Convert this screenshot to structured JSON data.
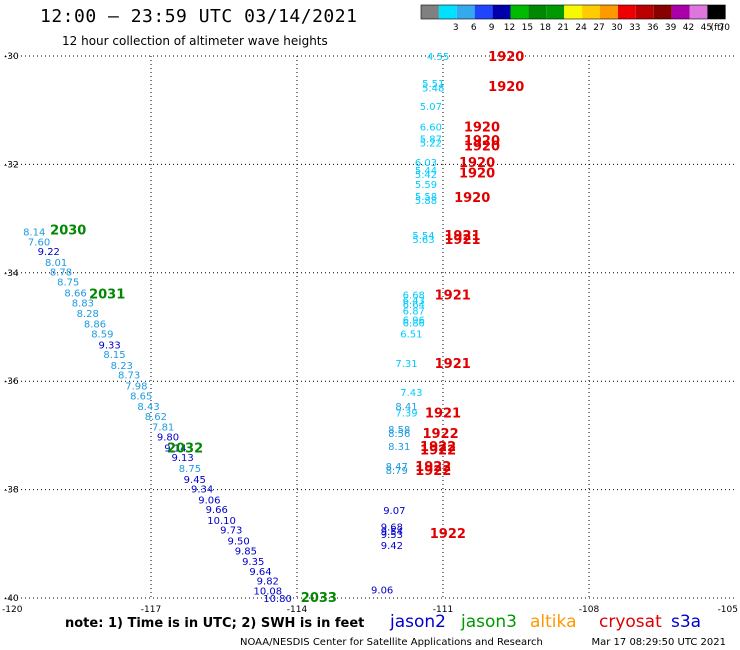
{
  "header": {
    "title": "12:00 — 23:59 UTC 03/14/2021",
    "subtitle": "12 hour collection of altimeter wave heights"
  },
  "legend": {
    "swatches": [
      {
        "color": "#808080",
        "label": ""
      },
      {
        "color": "#00e0ff",
        "label": "3"
      },
      {
        "color": "#33aaee",
        "label": "6"
      },
      {
        "color": "#1f45ff",
        "label": "9"
      },
      {
        "color": "#0000aa",
        "label": "12"
      },
      {
        "color": "#00bb00",
        "label": "15"
      },
      {
        "color": "#008800",
        "label": "18"
      },
      {
        "color": "#009900",
        "label": "21"
      },
      {
        "color": "#f8f800",
        "label": "24"
      },
      {
        "color": "#ffcc00",
        "label": "27"
      },
      {
        "color": "#ff9900",
        "label": "30"
      },
      {
        "color": "#ee0000",
        "label": "33"
      },
      {
        "color": "#bb0000",
        "label": "36"
      },
      {
        "color": "#880000",
        "label": "39"
      },
      {
        "color": "#aa00aa",
        "label": "42"
      },
      {
        "color": "#dd77dd",
        "label": "45"
      },
      {
        "color": "#000000",
        "label": "70"
      }
    ],
    "unit": "(ft)"
  },
  "chart_data": {
    "type": "scatter",
    "xlim": [
      -120,
      -105
    ],
    "ylim": [
      -40,
      -30
    ],
    "x_ticks": [
      "-120",
      "-117",
      "-114",
      "-111",
      "-108",
      "-105"
    ],
    "y_ticks": [
      "-30",
      "-32",
      "-34",
      "-36",
      "-38",
      "-40"
    ],
    "grid": "dotted",
    "colors": {
      "cyan": "#00ccff",
      "sky": "#1e9be0",
      "blue": "#0000cc",
      "hour_green": "#008800",
      "hour_red": "#e00000"
    },
    "series": [
      {
        "name": "jason2",
        "color": "#0000cc",
        "points": []
      },
      {
        "name": "jason3",
        "color": "#009900",
        "points": [
          {
            "x": -119.4,
            "y": -33.24,
            "v": "8.14",
            "c": "sky"
          },
          {
            "x": -119.3,
            "y": -33.42,
            "v": "7.60",
            "c": "sky"
          },
          {
            "x": -119.1,
            "y": -33.6,
            "v": "9.22",
            "c": "blue"
          },
          {
            "x": -118.95,
            "y": -33.8,
            "v": "8.01",
            "c": "sky"
          },
          {
            "x": -118.85,
            "y": -33.98,
            "v": "8.78",
            "c": "sky"
          },
          {
            "x": -118.7,
            "y": -34.16,
            "v": "8.75",
            "c": "sky"
          },
          {
            "x": -118.55,
            "y": -34.36,
            "v": "8.66",
            "c": "sky"
          },
          {
            "x": -118.4,
            "y": -34.55,
            "v": "8.83",
            "c": "sky"
          },
          {
            "x": -118.3,
            "y": -34.74,
            "v": "8.28",
            "c": "sky"
          },
          {
            "x": -118.15,
            "y": -34.94,
            "v": "8.86",
            "c": "sky"
          },
          {
            "x": -118.0,
            "y": -35.12,
            "v": "8.59",
            "c": "sky"
          },
          {
            "x": -117.85,
            "y": -35.32,
            "v": "9.33",
            "c": "blue"
          },
          {
            "x": -117.75,
            "y": -35.5,
            "v": "8.15",
            "c": "sky"
          },
          {
            "x": -117.6,
            "y": -35.7,
            "v": "8.23",
            "c": "sky"
          },
          {
            "x": -117.45,
            "y": -35.88,
            "v": "8.73",
            "c": "sky"
          },
          {
            "x": -117.3,
            "y": -36.08,
            "v": "7.98",
            "c": "sky"
          },
          {
            "x": -117.2,
            "y": -36.26,
            "v": "8.65",
            "c": "sky"
          },
          {
            "x": -117.05,
            "y": -36.46,
            "v": "8.43",
            "c": "sky"
          },
          {
            "x": -116.9,
            "y": -36.64,
            "v": "8.62",
            "c": "sky"
          },
          {
            "x": -116.75,
            "y": -36.84,
            "v": "7.81",
            "c": "sky"
          },
          {
            "x": -116.65,
            "y": -37.02,
            "v": "9.80",
            "c": "blue"
          },
          {
            "x": -116.5,
            "y": -37.22,
            "v": "9.14",
            "c": "blue"
          },
          {
            "x": -116.35,
            "y": -37.4,
            "v": "9.13",
            "c": "blue"
          },
          {
            "x": -116.2,
            "y": -37.6,
            "v": "8.75",
            "c": "sky"
          },
          {
            "x": -116.1,
            "y": -37.8,
            "v": "9.45",
            "c": "blue"
          },
          {
            "x": -115.95,
            "y": -37.98,
            "v": "9.34",
            "c": "blue"
          },
          {
            "x": -115.8,
            "y": -38.18,
            "v": "9.06",
            "c": "blue"
          },
          {
            "x": -115.65,
            "y": -38.36,
            "v": "9.66",
            "c": "blue"
          },
          {
            "x": -115.55,
            "y": -38.56,
            "v": "10.10",
            "c": "blue"
          },
          {
            "x": -115.35,
            "y": -38.74,
            "v": "9.73",
            "c": "blue"
          },
          {
            "x": -115.2,
            "y": -38.94,
            "v": "9.50",
            "c": "blue"
          },
          {
            "x": -115.05,
            "y": -39.12,
            "v": "9.85",
            "c": "blue"
          },
          {
            "x": -114.9,
            "y": -39.32,
            "v": "9.35",
            "c": "blue"
          },
          {
            "x": -114.75,
            "y": -39.5,
            "v": "9.64",
            "c": "blue"
          },
          {
            "x": -114.6,
            "y": -39.68,
            "v": "9.82",
            "c": "blue"
          },
          {
            "x": -114.6,
            "y": -39.86,
            "v": "10.08",
            "c": "blue"
          },
          {
            "x": -114.4,
            "y": -40.0,
            "v": "10.80",
            "c": "blue"
          }
        ],
        "hours": [
          {
            "x": -118.7,
            "y": -33.2,
            "v": "2030"
          },
          {
            "x": -117.9,
            "y": -34.38,
            "v": "2031"
          },
          {
            "x": -116.3,
            "y": -37.22,
            "v": "2032"
          },
          {
            "x": -113.55,
            "y": -39.98,
            "v": "2033"
          }
        ]
      },
      {
        "name": "altika",
        "color": "#ff9900",
        "points": []
      },
      {
        "name": "cryosat",
        "color": "#dd0000",
        "points": [
          {
            "x": -111.1,
            "y": -30.0,
            "v": "4.55",
            "c": "cyan"
          },
          {
            "x": -111.2,
            "y": -30.5,
            "v": "5.51",
            "c": "cyan"
          },
          {
            "x": -111.2,
            "y": -30.58,
            "v": "5.48",
            "c": "cyan"
          },
          {
            "x": -111.25,
            "y": -30.92,
            "v": "5.07",
            "c": "cyan"
          },
          {
            "x": -111.25,
            "y": -31.3,
            "v": "6.60",
            "c": "cyan"
          },
          {
            "x": -111.25,
            "y": -31.52,
            "v": "5.87",
            "c": "cyan"
          },
          {
            "x": -111.25,
            "y": -31.6,
            "v": "5.22",
            "c": "cyan"
          },
          {
            "x": -111.35,
            "y": -31.96,
            "v": "6.03",
            "c": "cyan"
          },
          {
            "x": -111.35,
            "y": -32.1,
            "v": "5.44",
            "c": "cyan"
          },
          {
            "x": -111.35,
            "y": -32.18,
            "v": "5.42",
            "c": "cyan"
          },
          {
            "x": -111.35,
            "y": -32.36,
            "v": "5.59",
            "c": "cyan"
          },
          {
            "x": -111.35,
            "y": -32.58,
            "v": "5.58",
            "c": "cyan"
          },
          {
            "x": -111.35,
            "y": -32.66,
            "v": "5.88",
            "c": "cyan"
          },
          {
            "x": -111.4,
            "y": -33.3,
            "v": "5.54",
            "c": "cyan"
          },
          {
            "x": -111.4,
            "y": -33.38,
            "v": "5.63",
            "c": "cyan"
          },
          {
            "x": -111.6,
            "y": -34.4,
            "v": "6.68",
            "c": "cyan"
          },
          {
            "x": -111.6,
            "y": -34.5,
            "v": "6.43",
            "c": "cyan"
          },
          {
            "x": -111.6,
            "y": -34.58,
            "v": "6.64",
            "c": "cyan"
          },
          {
            "x": -111.6,
            "y": -34.7,
            "v": "6.87",
            "c": "cyan"
          },
          {
            "x": -111.6,
            "y": -34.86,
            "v": "6.96",
            "c": "cyan"
          },
          {
            "x": -111.6,
            "y": -34.92,
            "v": "6.86",
            "c": "cyan"
          },
          {
            "x": -111.65,
            "y": -35.12,
            "v": "6.51",
            "c": "cyan"
          },
          {
            "x": -111.75,
            "y": -35.66,
            "v": "7.31",
            "c": "cyan"
          },
          {
            "x": -111.65,
            "y": -36.2,
            "v": "7.43",
            "c": "cyan"
          },
          {
            "x": -111.75,
            "y": -36.46,
            "v": "8.41",
            "c": "sky"
          },
          {
            "x": -111.75,
            "y": -36.58,
            "v": "7.39",
            "c": "cyan"
          },
          {
            "x": -111.9,
            "y": -36.88,
            "v": "8.58",
            "c": "sky"
          },
          {
            "x": -111.9,
            "y": -36.96,
            "v": "8.56",
            "c": "sky"
          },
          {
            "x": -111.9,
            "y": -37.2,
            "v": "8.31",
            "c": "sky"
          },
          {
            "x": -111.95,
            "y": -37.56,
            "v": "8.47",
            "c": "sky"
          },
          {
            "x": -111.95,
            "y": -37.64,
            "v": "8.79",
            "c": "sky"
          }
        ],
        "hours": [
          {
            "x": -109.7,
            "y": -30.0,
            "v": "1920"
          },
          {
            "x": -109.7,
            "y": -30.55,
            "v": "1920"
          },
          {
            "x": -110.2,
            "y": -31.3,
            "v": "1920"
          },
          {
            "x": -110.2,
            "y": -31.55,
            "v": "1920"
          },
          {
            "x": -110.2,
            "y": -31.65,
            "v": "1920"
          },
          {
            "x": -110.3,
            "y": -31.96,
            "v": "1920"
          },
          {
            "x": -110.3,
            "y": -32.15,
            "v": "1920"
          },
          {
            "x": -110.4,
            "y": -32.6,
            "v": "1920"
          },
          {
            "x": -110.6,
            "y": -33.3,
            "v": "1921"
          },
          {
            "x": -110.6,
            "y": -33.38,
            "v": "1921"
          },
          {
            "x": -110.8,
            "y": -34.4,
            "v": "1921"
          },
          {
            "x": -110.8,
            "y": -35.66,
            "v": "1921"
          },
          {
            "x": -111.0,
            "y": -36.58,
            "v": "1921"
          },
          {
            "x": -111.05,
            "y": -36.96,
            "v": "1922"
          },
          {
            "x": -111.1,
            "y": -37.2,
            "v": "1922"
          },
          {
            "x": -111.1,
            "y": -37.26,
            "v": "1922"
          },
          {
            "x": -111.2,
            "y": -37.56,
            "v": "1922"
          },
          {
            "x": -111.2,
            "y": -37.64,
            "v": "1922"
          }
        ]
      },
      {
        "name": "s3a",
        "color": "#0000cc",
        "points": [
          {
            "x": -112.0,
            "y": -38.38,
            "v": "9.07",
            "c": "blue"
          },
          {
            "x": -112.05,
            "y": -38.68,
            "v": "9.68",
            "c": "blue"
          },
          {
            "x": -112.05,
            "y": -38.76,
            "v": "9.54",
            "c": "blue"
          },
          {
            "x": -112.05,
            "y": -38.82,
            "v": "9.53",
            "c": "blue"
          },
          {
            "x": -112.05,
            "y": -39.02,
            "v": "9.42",
            "c": "blue"
          },
          {
            "x": -112.25,
            "y": -39.84,
            "v": "9.06",
            "c": "blue"
          }
        ],
        "hours": [
          {
            "x": -110.9,
            "y": -38.8,
            "v": "1922"
          }
        ]
      }
    ]
  },
  "footer": {
    "note": "note:  1) Time is in UTC;  2) SWH is in feet",
    "satellites": [
      {
        "name": "jason2",
        "color": "#0000cc"
      },
      {
        "name": "jason3",
        "color": "#009900"
      },
      {
        "name": "altika",
        "color": "#ff9900"
      },
      {
        "name": "cryosat",
        "color": "#dd0000"
      },
      {
        "name": "s3a",
        "color": "#0000cc"
      }
    ],
    "credit": "NOAA/NESDIS Center for Satellite Applications and Research",
    "timestamp": "Mar 17 08:29:50 UTC 2021"
  }
}
